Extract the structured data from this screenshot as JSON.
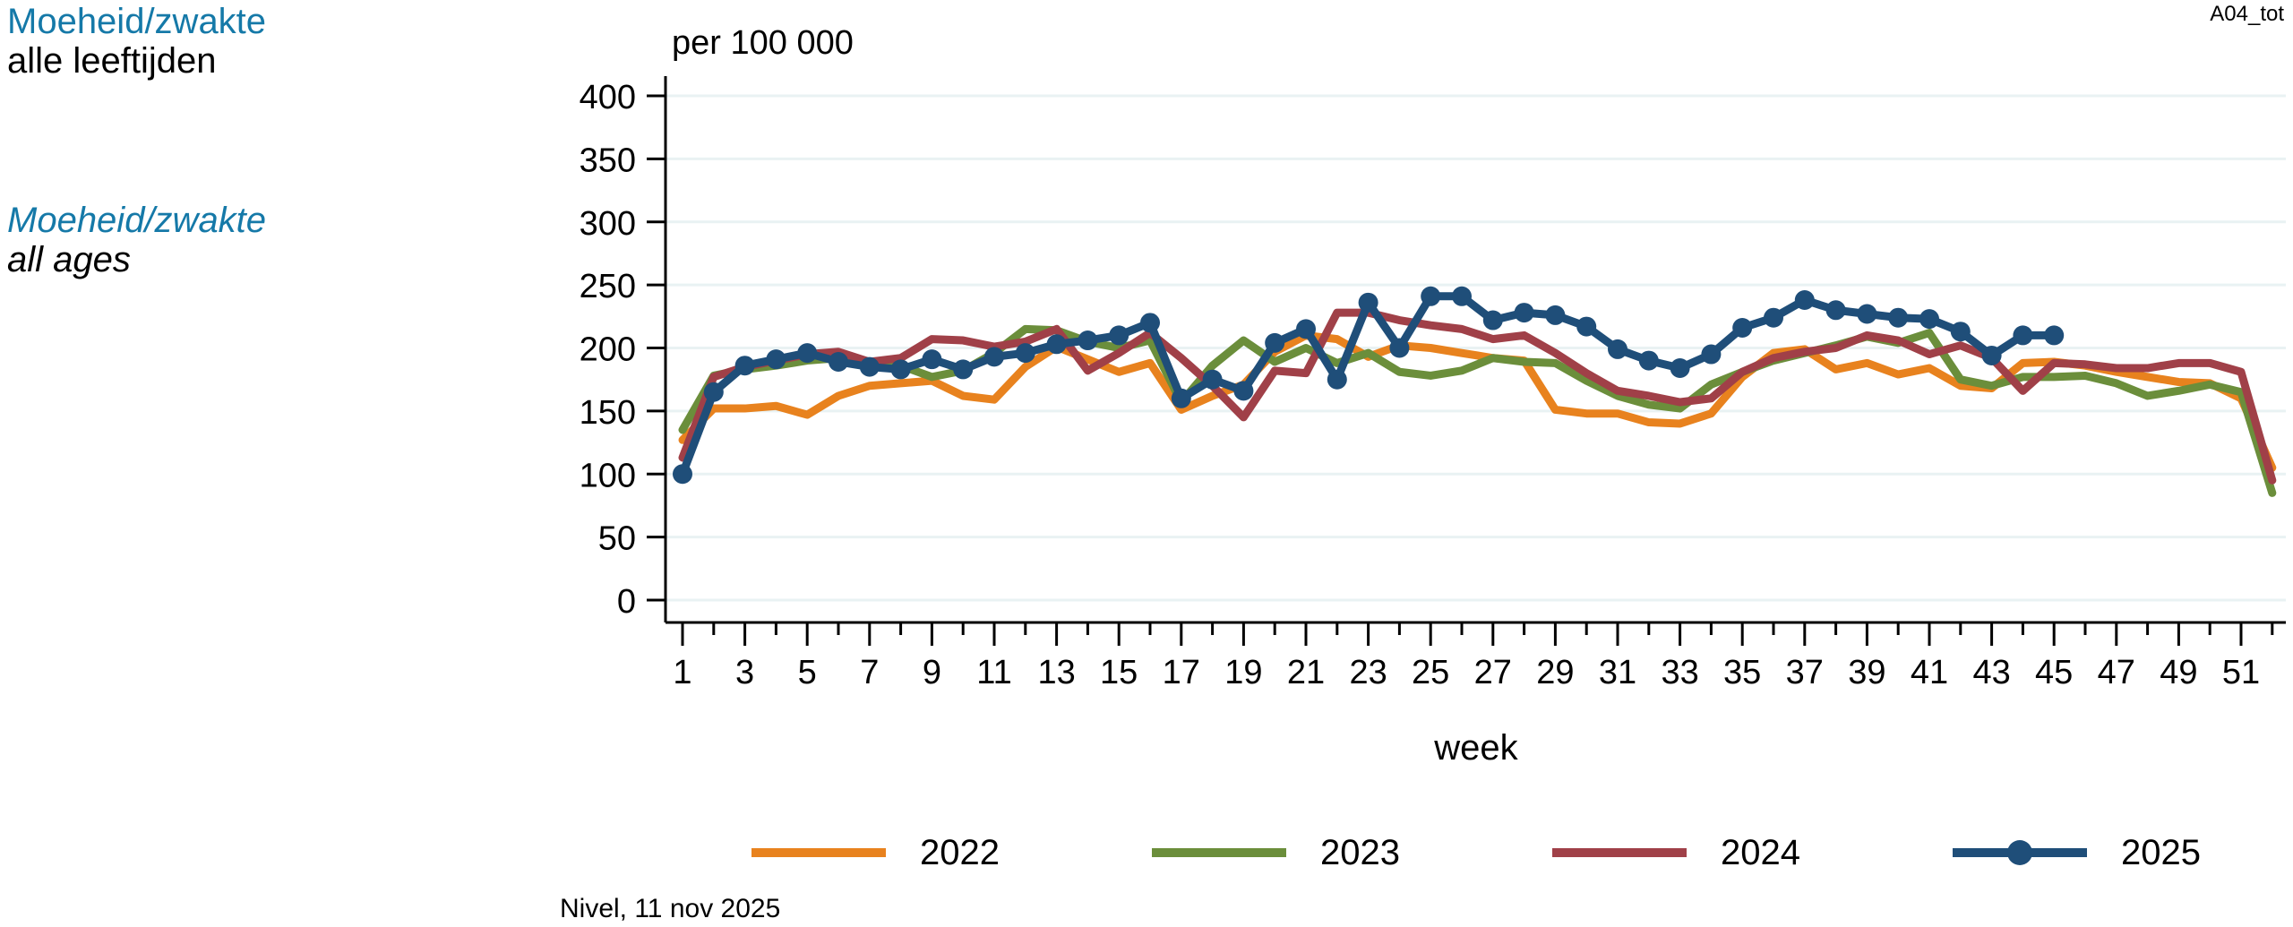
{
  "titles": {
    "dutch_title": "Moeheid/zwakte",
    "dutch_subtitle": "alle leeftijden",
    "english_title": "Moeheid/zwakte",
    "english_subtitle": "all ages"
  },
  "chart_code": "A04_tot",
  "source_note": "Nivel, 11 nov 2025",
  "colors": {
    "title_accent": "#1579A8",
    "gridline": "#E9F2F3",
    "axis": "#000000",
    "series_2022": "#E8821E",
    "series_2023": "#6B8E3B",
    "series_2024": "#A04048",
    "series_2025": "#1F4E79"
  },
  "chart_data": {
    "type": "line",
    "title": "",
    "y_axis_label": "per 100 000",
    "x_axis_label": "week",
    "ylim": [
      0,
      400
    ],
    "y_ticks": [
      0,
      50,
      100,
      150,
      200,
      250,
      300,
      350,
      400
    ],
    "x_range": [
      1,
      52
    ],
    "x_tick_labels": [
      1,
      3,
      5,
      7,
      9,
      11,
      13,
      15,
      17,
      19,
      21,
      23,
      25,
      27,
      29,
      31,
      33,
      35,
      37,
      39,
      41,
      43,
      45,
      47,
      49,
      51
    ],
    "grid": "horizontal",
    "legend_position": "bottom",
    "series": [
      {
        "name": "2022",
        "color": "#E8821E",
        "marker": "none",
        "values": [
          127,
          152,
          152,
          154,
          147,
          162,
          170,
          172,
          174,
          162,
          159,
          185,
          201,
          191,
          181,
          188,
          151,
          162,
          171,
          197,
          210,
          207,
          193,
          202,
          200,
          196,
          192,
          190,
          151,
          148,
          148,
          141,
          140,
          148,
          177,
          196,
          199,
          183,
          188,
          179,
          184,
          170,
          168,
          188,
          189,
          186,
          181,
          177,
          173,
          172,
          160,
          105
        ]
      },
      {
        "name": "2023",
        "color": "#6B8E3B",
        "marker": "none",
        "values": [
          135,
          178,
          183,
          186,
          190,
          192,
          188,
          186,
          177,
          182,
          196,
          215,
          214,
          205,
          200,
          206,
          157,
          186,
          206,
          189,
          200,
          188,
          196,
          181,
          178,
          182,
          192,
          189,
          188,
          174,
          162,
          155,
          152,
          171,
          181,
          190,
          196,
          202,
          209,
          204,
          212,
          175,
          170,
          177,
          177,
          178,
          172,
          162,
          166,
          171,
          165,
          85
        ]
      },
      {
        "name": "2024",
        "color": "#A04048",
        "marker": "none",
        "values": [
          113,
          177,
          185,
          190,
          195,
          197,
          189,
          192,
          207,
          206,
          201,
          205,
          215,
          182,
          196,
          212,
          192,
          170,
          145,
          182,
          180,
          228,
          228,
          222,
          218,
          215,
          207,
          210,
          196,
          180,
          166,
          162,
          157,
          160,
          181,
          192,
          197,
          200,
          210,
          206,
          195,
          202,
          192,
          166,
          188,
          187,
          184,
          184,
          188,
          188,
          181,
          95
        ]
      },
      {
        "name": "2025",
        "color": "#1F4E79",
        "marker": "circle",
        "values": [
          100,
          165,
          186,
          191,
          196,
          189,
          185,
          183,
          191,
          183,
          193,
          196,
          203,
          206,
          210,
          220,
          160,
          175,
          166,
          204,
          215,
          175,
          236,
          200,
          241,
          241,
          222,
          228,
          226,
          217,
          199,
          190,
          184,
          195,
          216,
          224,
          238,
          230,
          227,
          224,
          223,
          213,
          194,
          210,
          210
        ]
      }
    ]
  }
}
